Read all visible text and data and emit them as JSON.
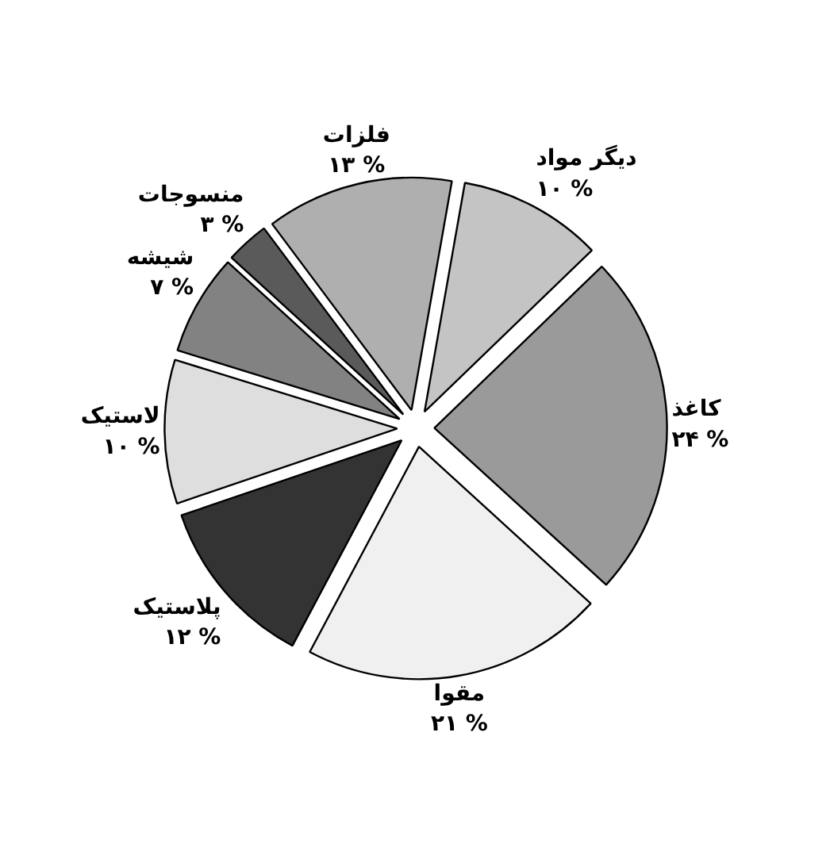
{
  "chart_data": {
    "type": "pie",
    "categories": [
      "دیگر مواد",
      "کاغذ",
      "مقوا",
      "پلاستیک",
      "لاستیک",
      "شیشه",
      "منسوجات",
      "فلزات"
    ],
    "values": [
      10,
      24,
      21,
      12,
      10,
      7,
      3,
      13
    ],
    "value_labels": [
      "۱۰ %",
      "۲۴ %",
      "۲۱ %",
      "۱۲ %",
      "۱۰ %",
      "۷ %",
      "۳ %",
      "۱۳ %"
    ],
    "colors": [
      "#c4c4c4",
      "#9a9a9a",
      "#f0f0f0",
      "#333333",
      "#dedede",
      "#828282",
      "#5a5a5a",
      "#afafaf"
    ]
  }
}
